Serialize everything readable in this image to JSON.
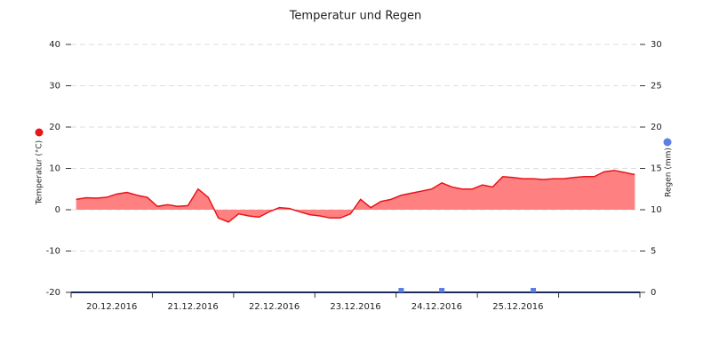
{
  "chart_data": {
    "type": "line",
    "title": "Temperatur und Regen",
    "y_label": "Temperatur (°C)",
    "y2_label": "Regen (mm)",
    "categories": [
      "20.12.2016",
      "21.12.2016",
      "22.12.2016",
      "23.12.2016",
      "24.12.2016",
      "25.12.2016",
      null
    ],
    "ylim": [
      -20,
      40
    ],
    "yticks": [
      -20,
      -10,
      0,
      10,
      20,
      30,
      40
    ],
    "y2lim": [
      0,
      30
    ],
    "y2ticks": [
      0,
      5,
      10,
      15,
      20,
      25,
      30
    ],
    "grid": true,
    "series": [
      {
        "name": "Temperatur (°C)",
        "color": "#e8141a",
        "fill": "#ff8080",
        "values": [
          [
            2.5,
            2.9,
            2.8,
            3.0,
            3.8,
            4.2,
            3.5,
            3.0
          ],
          [
            0.8,
            1.2,
            0.8,
            1.0,
            5.0,
            3.0,
            -2.0,
            -3.0
          ],
          [
            -1.0,
            -1.5,
            -1.8,
            -0.5,
            0.5,
            0.3,
            -0.5,
            -1.2
          ],
          [
            -1.5,
            -2.0,
            -2.0,
            -1.0,
            2.5,
            0.5,
            2.0,
            2.5
          ],
          [
            3.5,
            4.0,
            4.5,
            5.0,
            6.5,
            5.5,
            5.0,
            5.0
          ],
          [
            6.0,
            5.5,
            8.0,
            7.8,
            7.5,
            7.5,
            7.3,
            7.5
          ],
          [
            7.5,
            7.8,
            8.0,
            8.0,
            9.2,
            9.5,
            9.0,
            8.5
          ]
        ]
      },
      {
        "name": "Regen (mm)",
        "color": "#5b7fe6",
        "axis": "y2",
        "values": [
          [
            null,
            null,
            null,
            null,
            null,
            null,
            null,
            null
          ],
          [
            null,
            null,
            null,
            null,
            null,
            null,
            null,
            null
          ],
          [
            null,
            null,
            null,
            null,
            null,
            null,
            null,
            null
          ],
          [
            null,
            null,
            null,
            null,
            null,
            null,
            null,
            null
          ],
          [
            0,
            null,
            null,
            null,
            0,
            null,
            null,
            null
          ],
          [
            null,
            null,
            null,
            null,
            null,
            0,
            null,
            null
          ],
          [
            null,
            null,
            null,
            null,
            null,
            null,
            null,
            null
          ]
        ]
      }
    ]
  }
}
